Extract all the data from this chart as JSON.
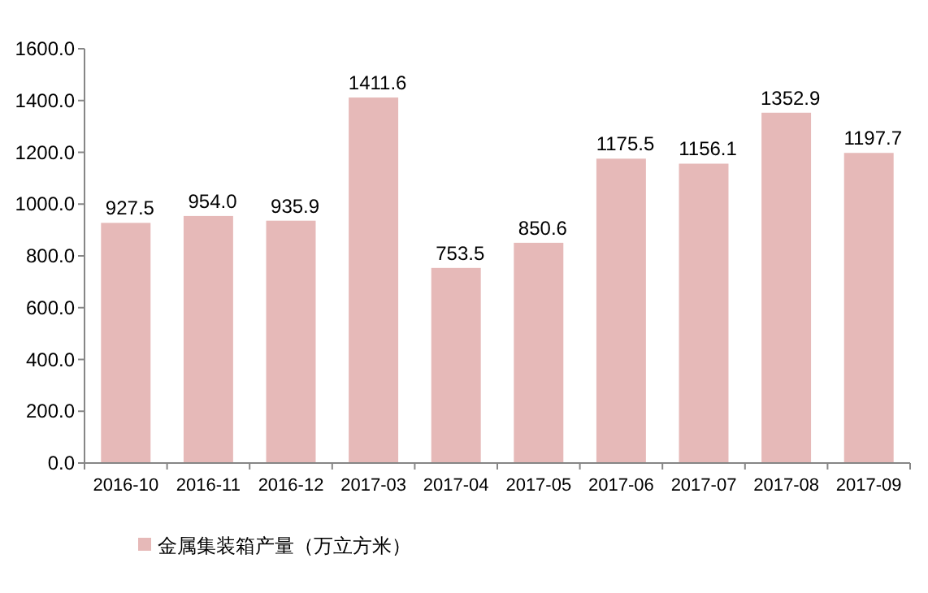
{
  "chart_data": {
    "type": "bar",
    "categories": [
      "2016-10",
      "2016-11",
      "2016-12",
      "2017-03",
      "2017-04",
      "2017-05",
      "2017-06",
      "2017-07",
      "2017-08",
      "2017-09"
    ],
    "series": [
      {
        "name": "金属集装箱产量（万立方米）",
        "color": "#e6b9b8",
        "values": [
          927.5,
          954.0,
          935.9,
          1411.6,
          753.5,
          850.6,
          1175.5,
          1156.1,
          1352.9,
          1197.7
        ],
        "value_labels": [
          "927.5",
          "954.0",
          "935.9",
          "1411.6",
          "753.5",
          "850.6",
          "1175.5",
          "1156.1",
          "1352.9",
          "1197.7"
        ]
      }
    ],
    "ylim": [
      0,
      1600
    ],
    "yticks": [
      {
        "value": 0,
        "label": "0.0"
      },
      {
        "value": 200,
        "label": "200.0"
      },
      {
        "value": 400,
        "label": "400.0"
      },
      {
        "value": 600,
        "label": "600.0"
      },
      {
        "value": 800,
        "label": "800.0"
      },
      {
        "value": 1000,
        "label": "1000.0"
      },
      {
        "value": 1200,
        "label": "1200.0"
      },
      {
        "value": 1400,
        "label": "1400.0"
      },
      {
        "value": 1600,
        "label": "1600.0"
      }
    ],
    "legend": "bottom"
  }
}
